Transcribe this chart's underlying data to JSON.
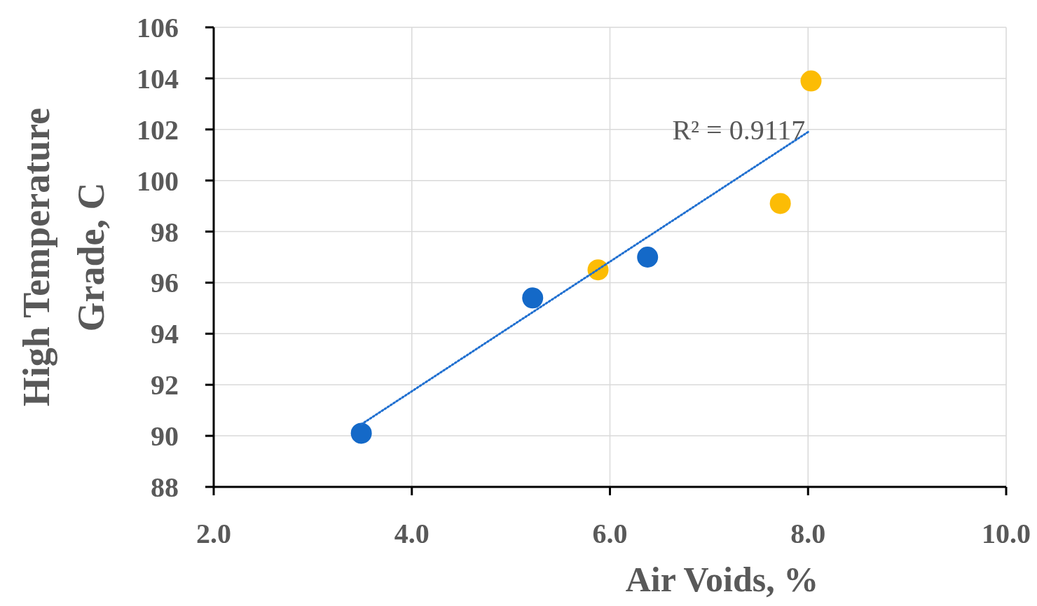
{
  "chart_data": {
    "type": "scatter",
    "xlabel": "Air Voids, %",
    "ylabel": "High Temperature Grade, C",
    "xlim": [
      2,
      10
    ],
    "xticks": [
      {
        "value": 2,
        "label": "2.0"
      },
      {
        "value": 4,
        "label": "4.0"
      },
      {
        "value": 6,
        "label": "6.0"
      },
      {
        "value": 8,
        "label": "8.0"
      },
      {
        "value": 10,
        "label": "10.0"
      }
    ],
    "ylim": [
      88,
      106
    ],
    "yticks": [
      88,
      90,
      92,
      94,
      96,
      98,
      100,
      102,
      104,
      106
    ],
    "grid": true,
    "series": [
      {
        "color": "#1469c8",
        "marker": "circle",
        "x": [
          3.49,
          5.22,
          6.38
        ],
        "values": [
          90.1,
          95.4,
          97.0
        ]
      },
      {
        "color": "#fcbc05",
        "marker": "circle",
        "x": [
          5.88,
          7.72,
          8.03
        ],
        "values": [
          96.5,
          99.1,
          103.9
        ]
      },
      {
        "type": "line",
        "color": "#1f6fd0",
        "line_style": "dotted",
        "marker": "none",
        "x": [
          3.49,
          8.0
        ],
        "values": [
          90.45,
          101.9
        ]
      }
    ],
    "annotations": [
      "R² = 0.9117"
    ]
  }
}
